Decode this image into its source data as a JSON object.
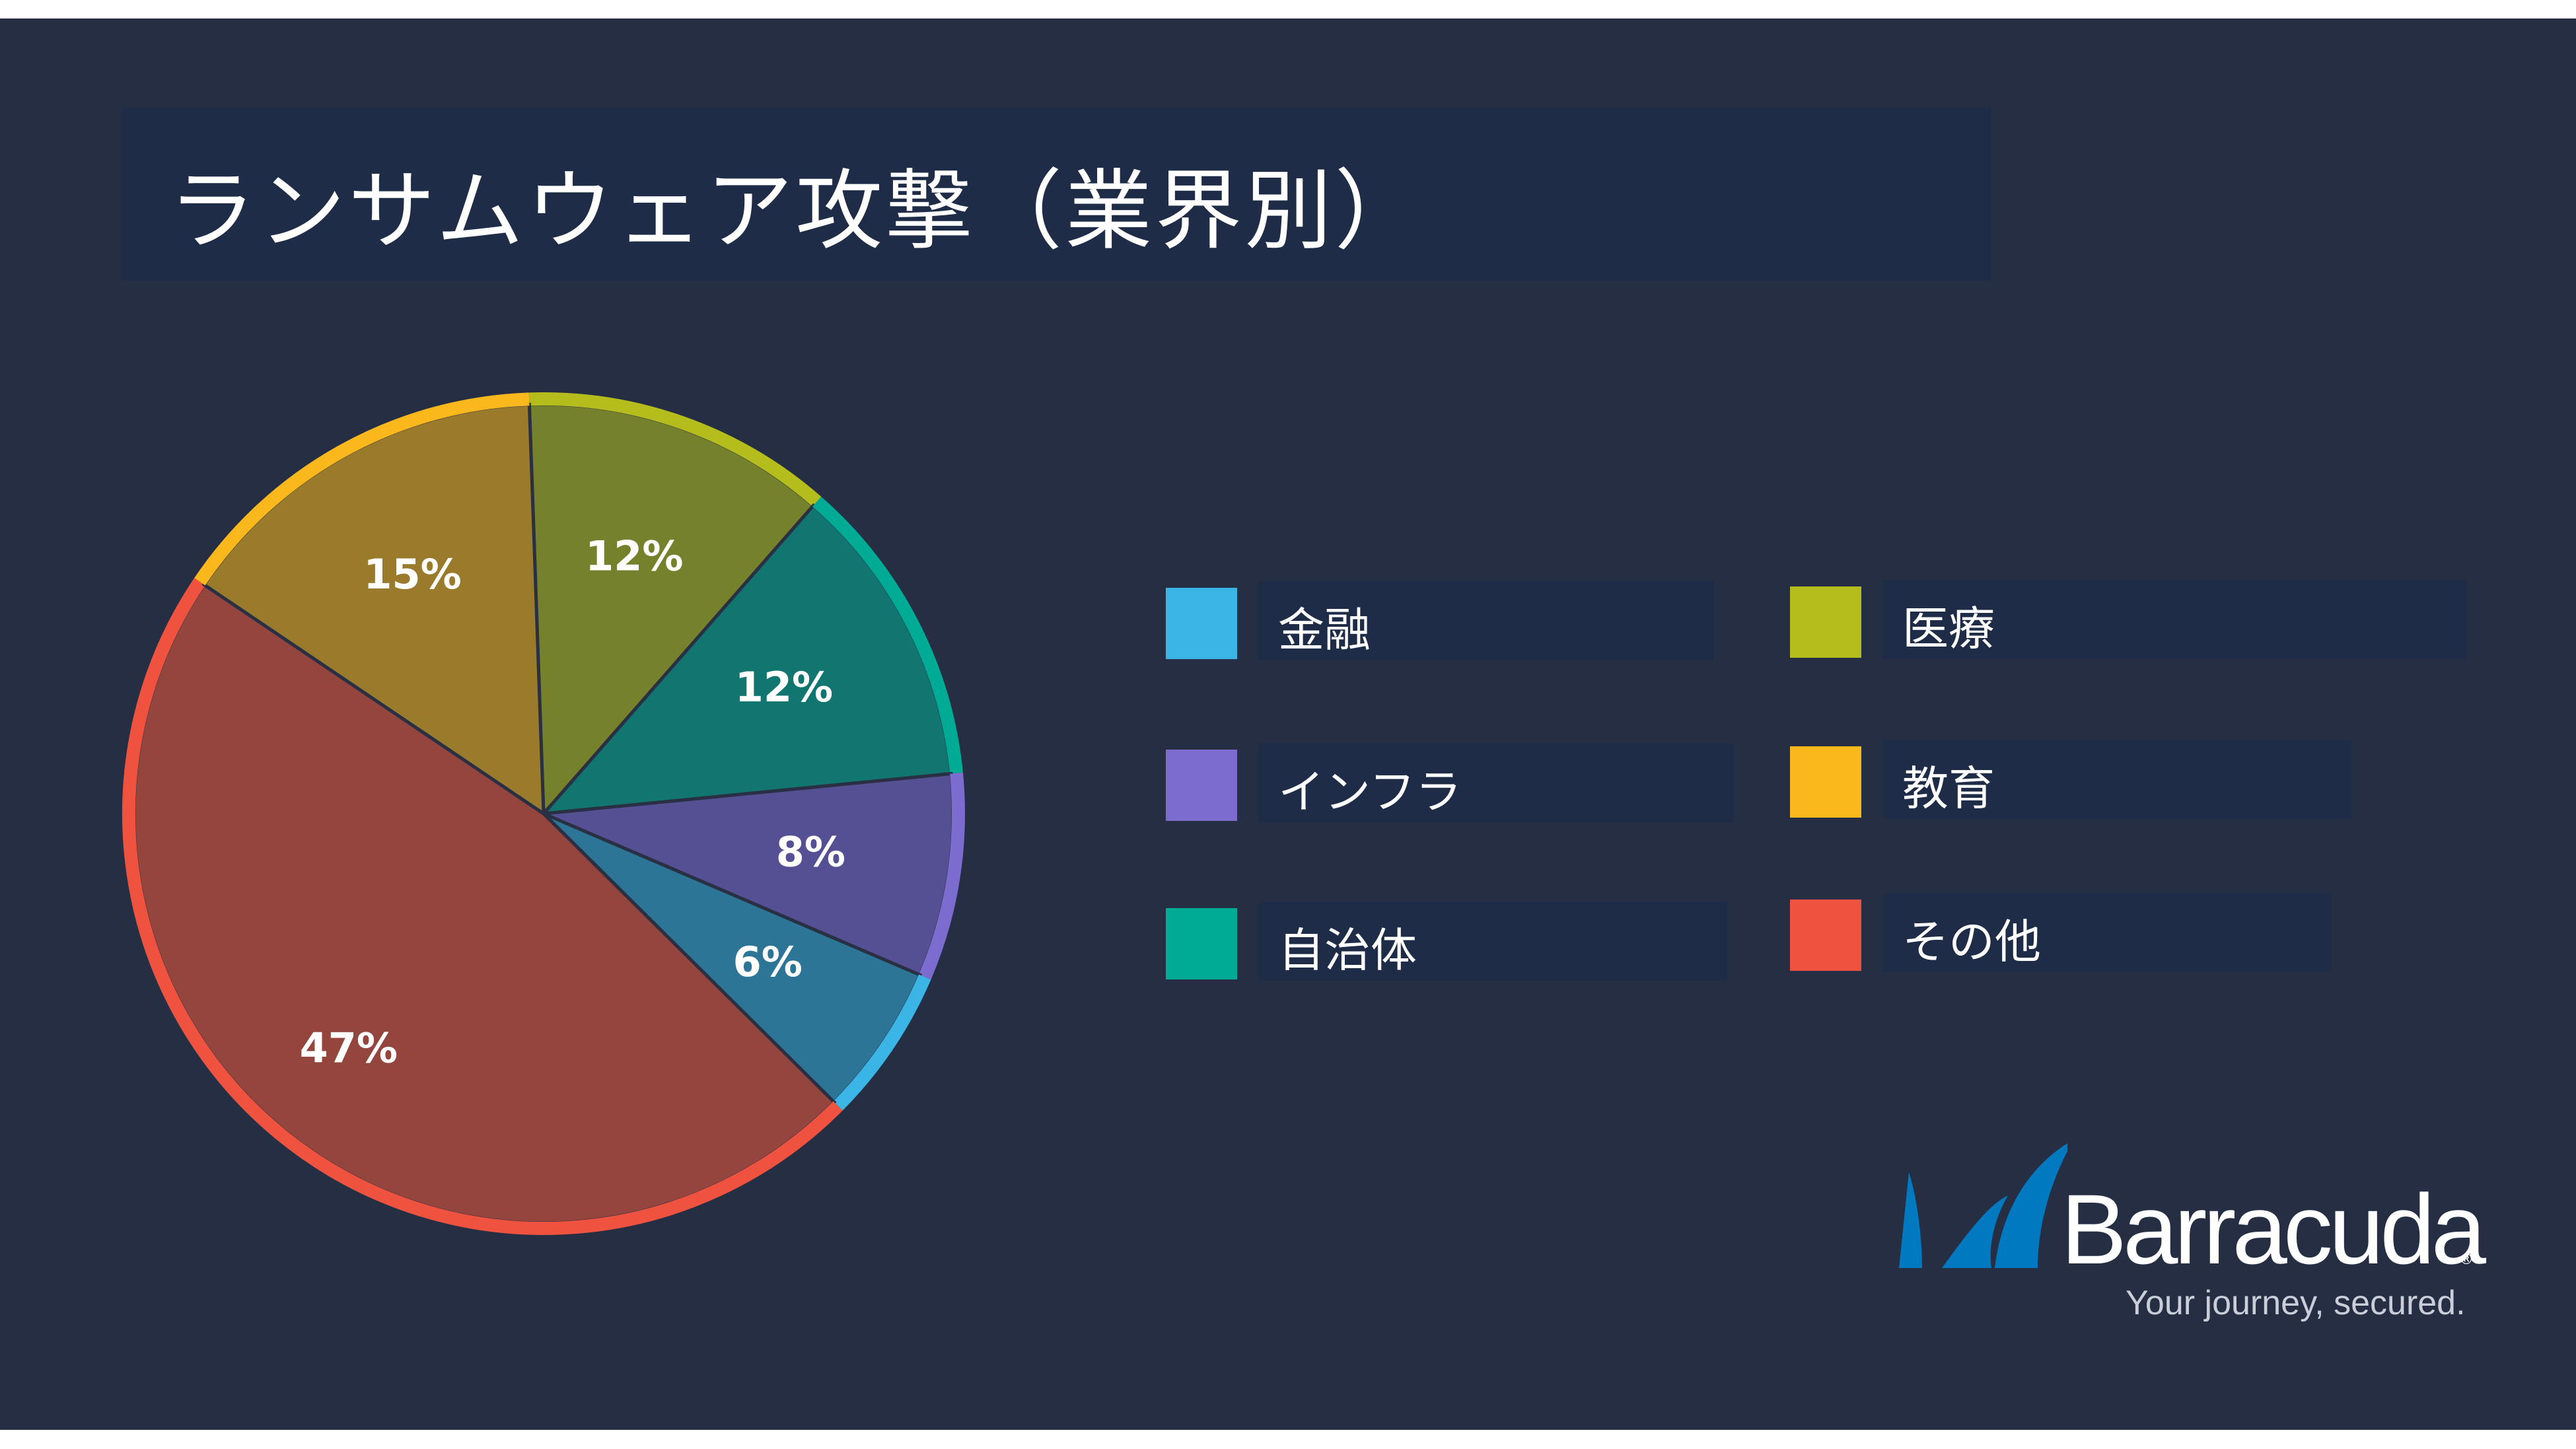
{
  "title": "ランサムウェア攻撃（業界別）",
  "chart_data": {
    "type": "pie",
    "title": "ランサムウェア攻撃（業界別）",
    "slices": [
      {
        "name": "医療",
        "value": 12,
        "label": "12%",
        "fill": "#76812b",
        "rim": "#b5bd1c"
      },
      {
        "name": "自治体",
        "value": 12,
        "label": "12%",
        "fill": "#117570",
        "rim": "#00ab96"
      },
      {
        "name": "インフラ",
        "value": 8,
        "label": "8%",
        "fill": "#554f94",
        "rim": "#7c6ccf"
      },
      {
        "name": "金融",
        "value": 6,
        "label": "6%",
        "fill": "#2d7596",
        "rim": "#3bb4e6"
      },
      {
        "name": "その他",
        "value": 47,
        "label": "47%",
        "fill": "#93453e",
        "rim": "#ef5340"
      },
      {
        "name": "教育",
        "value": 15,
        "label": "15%",
        "fill": "#9a7b2c",
        "rim": "#fbb81c"
      }
    ],
    "legend": [
      {
        "name": "金融",
        "color": "#3bb4e6"
      },
      {
        "name": "医療",
        "color": "#b5bd1c"
      },
      {
        "name": "インフラ",
        "color": "#7c6ccf"
      },
      {
        "name": "教育",
        "color": "#fbb81c"
      },
      {
        "name": "自治体",
        "color": "#00ab96"
      },
      {
        "name": "その他",
        "color": "#ef5340"
      }
    ],
    "legend_position": "right"
  },
  "logo": {
    "brand": "Barracuda",
    "tagline": "Your journey, secured.",
    "brand_color": "#0079c1"
  }
}
